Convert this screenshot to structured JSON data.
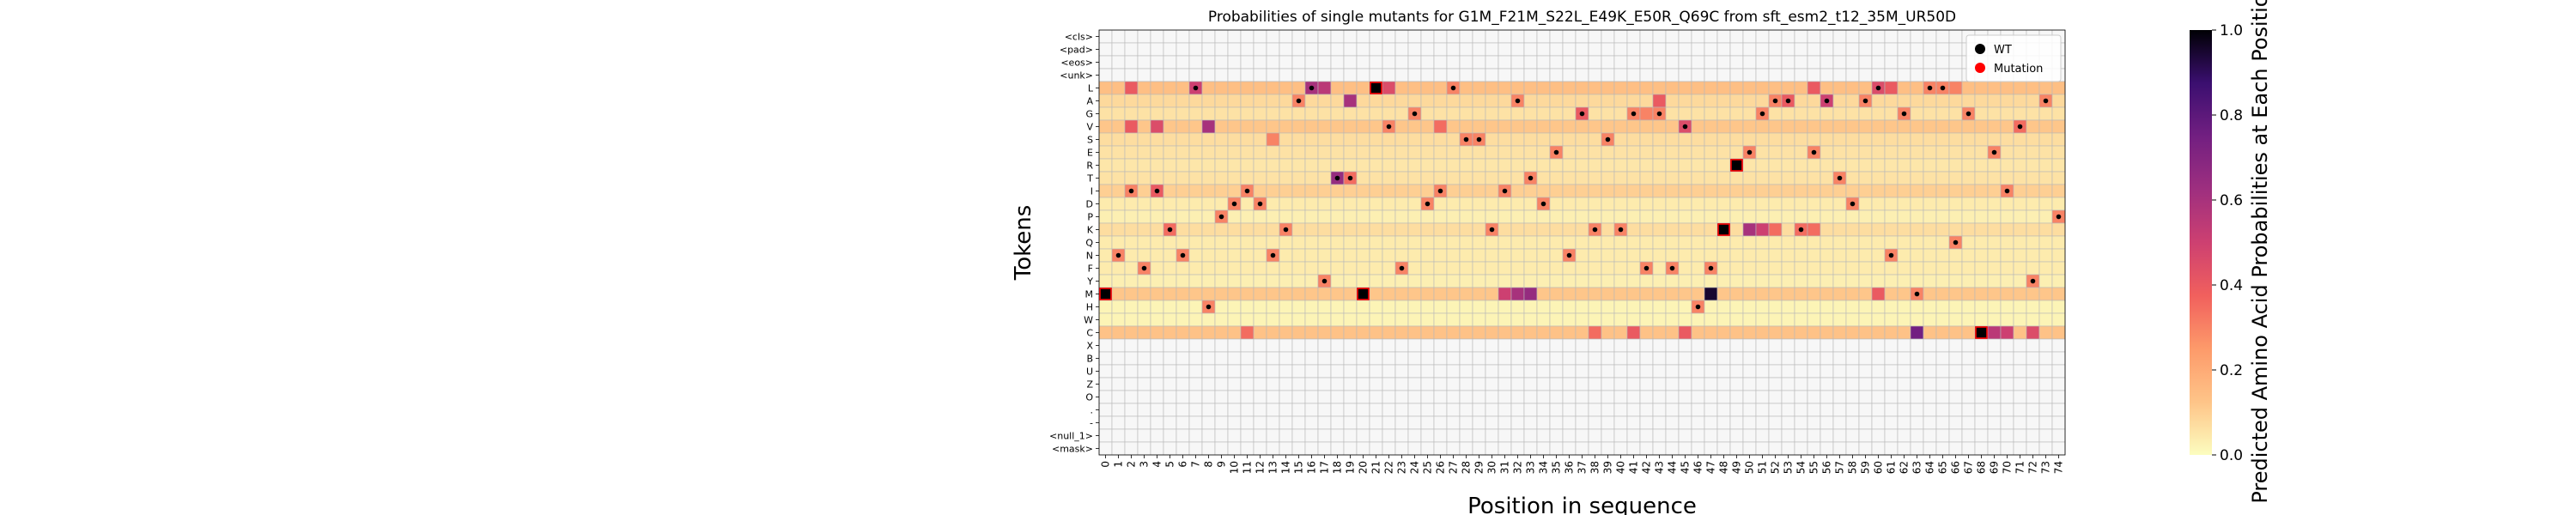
{
  "chart_data": {
    "type": "heatmap",
    "title": "Probabilities of single mutants for G1M_F21M_S22L_E49K_E50R_Q69C from sft_esm2_t12_35M_UR50D",
    "xlabel": "Position in sequence",
    "ylabel": "Tokens",
    "x_categories": [
      "0",
      "1",
      "2",
      "3",
      "4",
      "5",
      "6",
      "7",
      "8",
      "9",
      "10",
      "11",
      "12",
      "13",
      "14",
      "15",
      "16",
      "17",
      "18",
      "19",
      "20",
      "21",
      "22",
      "23",
      "24",
      "25",
      "26",
      "27",
      "28",
      "29",
      "30",
      "31",
      "32",
      "33",
      "34",
      "35",
      "36",
      "37",
      "38",
      "39",
      "40",
      "41",
      "42",
      "43",
      "44",
      "45",
      "46",
      "47",
      "48",
      "49",
      "50",
      "51",
      "52",
      "53",
      "54",
      "55",
      "56",
      "57",
      "58",
      "59",
      "60",
      "61",
      "62",
      "63",
      "64",
      "65",
      "66",
      "67",
      "68",
      "69",
      "70",
      "71",
      "72",
      "73",
      "74"
    ],
    "y_categories": [
      "<cls>",
      "<pad>",
      "<eos>",
      "<unk>",
      "L",
      "A",
      "G",
      "V",
      "S",
      "E",
      "R",
      "T",
      "I",
      "D",
      "P",
      "K",
      "Q",
      "N",
      "F",
      "Y",
      "M",
      "H",
      "W",
      "C",
      "X",
      "B",
      "U",
      "Z",
      "O",
      ".",
      "-",
      "<null_1>",
      "<mask>"
    ],
    "colorbar": {
      "label": "Predicted Amino Acid Probabilities at Each Position",
      "colormap": "magma_r",
      "range": [
        0.0,
        1.0
      ],
      "ticks": [
        "0.0",
        "0.2",
        "0.4",
        "0.6",
        "0.8",
        "1.0"
      ]
    },
    "legend": {
      "position": "top-right",
      "entries": [
        {
          "label": "WT",
          "color": "#000000"
        },
        {
          "label": "Mutation",
          "color": "#ff0000"
        }
      ]
    },
    "base_probabilities": {
      "L": 0.14,
      "A": 0.08,
      "G": 0.06,
      "V": 0.12,
      "S": 0.07,
      "E": 0.06,
      "R": 0.05,
      "T": 0.06,
      "I": 0.1,
      "D": 0.04,
      "P": 0.03,
      "K": 0.07,
      "Q": 0.04,
      "N": 0.04,
      "F": 0.04,
      "Y": 0.03,
      "M": 0.12,
      "H": 0.02,
      "W": 0.02,
      "C": 0.13
    },
    "highlighted_probabilities": [
      {
        "token": "L",
        "x": 2,
        "p": 0.4
      },
      {
        "token": "L",
        "x": 7,
        "p": 0.5
      },
      {
        "token": "L",
        "x": 16,
        "p": 0.6
      },
      {
        "token": "L",
        "x": 17,
        "p": 0.55
      },
      {
        "token": "L",
        "x": 21,
        "p": 1.0
      },
      {
        "token": "L",
        "x": 22,
        "p": 0.45
      },
      {
        "token": "L",
        "x": 60,
        "p": 0.45
      },
      {
        "token": "L",
        "x": 61,
        "p": 0.4
      },
      {
        "token": "L",
        "x": 55,
        "p": 0.4
      },
      {
        "token": "L",
        "x": 64,
        "p": 0.3
      },
      {
        "token": "L",
        "x": 66,
        "p": 0.3
      },
      {
        "token": "A",
        "x": 19,
        "p": 0.6
      },
      {
        "token": "A",
        "x": 43,
        "p": 0.4
      },
      {
        "token": "A",
        "x": 53,
        "p": 0.4
      },
      {
        "token": "A",
        "x": 56,
        "p": 0.5
      },
      {
        "token": "G",
        "x": 37,
        "p": 0.4
      },
      {
        "token": "G",
        "x": 42,
        "p": 0.3
      },
      {
        "token": "V",
        "x": 2,
        "p": 0.4
      },
      {
        "token": "V",
        "x": 4,
        "p": 0.45
      },
      {
        "token": "V",
        "x": 8,
        "p": 0.6
      },
      {
        "token": "V",
        "x": 22,
        "p": 0.3
      },
      {
        "token": "V",
        "x": 26,
        "p": 0.35
      },
      {
        "token": "V",
        "x": 45,
        "p": 0.45
      },
      {
        "token": "V",
        "x": 71,
        "p": 0.35
      },
      {
        "token": "S",
        "x": 13,
        "p": 0.3
      },
      {
        "token": "R",
        "x": 49,
        "p": 1.0
      },
      {
        "token": "T",
        "x": 18,
        "p": 0.65
      },
      {
        "token": "T",
        "x": 19,
        "p": 0.35
      },
      {
        "token": "I",
        "x": 4,
        "p": 0.4
      },
      {
        "token": "K",
        "x": 5,
        "p": 0.35
      },
      {
        "token": "K",
        "x": 14,
        "p": 0.3
      },
      {
        "token": "K",
        "x": 48,
        "p": 1.0
      },
      {
        "token": "K",
        "x": 50,
        "p": 0.6
      },
      {
        "token": "K",
        "x": 51,
        "p": 0.5
      },
      {
        "token": "K",
        "x": 52,
        "p": 0.35
      },
      {
        "token": "K",
        "x": 54,
        "p": 0.35
      },
      {
        "token": "K",
        "x": 55,
        "p": 0.35
      },
      {
        "token": "M",
        "x": 0,
        "p": 1.0
      },
      {
        "token": "M",
        "x": 20,
        "p": 1.0
      },
      {
        "token": "M",
        "x": 31,
        "p": 0.5
      },
      {
        "token": "M",
        "x": 32,
        "p": 0.6
      },
      {
        "token": "M",
        "x": 33,
        "p": 0.65
      },
      {
        "token": "M",
        "x": 47,
        "p": 0.95
      },
      {
        "token": "M",
        "x": 60,
        "p": 0.4
      },
      {
        "token": "C",
        "x": 11,
        "p": 0.35
      },
      {
        "token": "C",
        "x": 38,
        "p": 0.35
      },
      {
        "token": "C",
        "x": 41,
        "p": 0.4
      },
      {
        "token": "C",
        "x": 45,
        "p": 0.4
      },
      {
        "token": "C",
        "x": 63,
        "p": 0.75
      },
      {
        "token": "C",
        "x": 68,
        "p": 1.0
      },
      {
        "token": "C",
        "x": 69,
        "p": 0.55
      },
      {
        "token": "C",
        "x": 70,
        "p": 0.5
      },
      {
        "token": "C",
        "x": 72,
        "p": 0.45
      }
    ],
    "wild_type": [
      {
        "x": 0,
        "token": "M"
      },
      {
        "x": 1,
        "token": "N"
      },
      {
        "x": 2,
        "token": "I"
      },
      {
        "x": 3,
        "token": "F"
      },
      {
        "x": 4,
        "token": "I"
      },
      {
        "x": 5,
        "token": "K"
      },
      {
        "x": 6,
        "token": "N"
      },
      {
        "x": 7,
        "token": "L"
      },
      {
        "x": 8,
        "token": "H"
      },
      {
        "x": 9,
        "token": "P"
      },
      {
        "x": 10,
        "token": "D"
      },
      {
        "x": 11,
        "token": "I"
      },
      {
        "x": 12,
        "token": "D"
      },
      {
        "x": 13,
        "token": "N"
      },
      {
        "x": 14,
        "token": "K"
      },
      {
        "x": 15,
        "token": "A"
      },
      {
        "x": 16,
        "token": "L"
      },
      {
        "x": 17,
        "token": "Y"
      },
      {
        "x": 18,
        "token": "T"
      },
      {
        "x": 19,
        "token": "T"
      },
      {
        "x": 20,
        "token": "M"
      },
      {
        "x": 21,
        "token": "L"
      },
      {
        "x": 22,
        "token": "V"
      },
      {
        "x": 23,
        "token": "F"
      },
      {
        "x": 24,
        "token": "G"
      },
      {
        "x": 25,
        "token": "D"
      },
      {
        "x": 26,
        "token": "I"
      },
      {
        "x": 27,
        "token": "L"
      },
      {
        "x": 28,
        "token": "S"
      },
      {
        "x": 29,
        "token": "S"
      },
      {
        "x": 30,
        "token": "K"
      },
      {
        "x": 31,
        "token": "I"
      },
      {
        "x": 32,
        "token": "A"
      },
      {
        "x": 33,
        "token": "T"
      },
      {
        "x": 34,
        "token": "D"
      },
      {
        "x": 35,
        "token": "E"
      },
      {
        "x": 36,
        "token": "N"
      },
      {
        "x": 37,
        "token": "G"
      },
      {
        "x": 38,
        "token": "K"
      },
      {
        "x": 39,
        "token": "S"
      },
      {
        "x": 40,
        "token": "K"
      },
      {
        "x": 41,
        "token": "G"
      },
      {
        "x": 42,
        "token": "F"
      },
      {
        "x": 43,
        "token": "G"
      },
      {
        "x": 44,
        "token": "F"
      },
      {
        "x": 45,
        "token": "V"
      },
      {
        "x": 46,
        "token": "H"
      },
      {
        "x": 47,
        "token": "F"
      },
      {
        "x": 48,
        "token": "K"
      },
      {
        "x": 49,
        "token": "R"
      },
      {
        "x": 50,
        "token": "E"
      },
      {
        "x": 51,
        "token": "G"
      },
      {
        "x": 52,
        "token": "A"
      },
      {
        "x": 53,
        "token": "A"
      },
      {
        "x": 54,
        "token": "K"
      },
      {
        "x": 55,
        "token": "E"
      },
      {
        "x": 56,
        "token": "A"
      },
      {
        "x": 57,
        "token": "T"
      },
      {
        "x": 58,
        "token": "D"
      },
      {
        "x": 59,
        "token": "A"
      },
      {
        "x": 60,
        "token": "L"
      },
      {
        "x": 61,
        "token": "N"
      },
      {
        "x": 62,
        "token": "G"
      },
      {
        "x": 63,
        "token": "M"
      },
      {
        "x": 64,
        "token": "L"
      },
      {
        "x": 65,
        "token": "L"
      },
      {
        "x": 66,
        "token": "Q"
      },
      {
        "x": 67,
        "token": "G"
      },
      {
        "x": 68,
        "token": "C"
      },
      {
        "x": 69,
        "token": "E"
      },
      {
        "x": 70,
        "token": "I"
      },
      {
        "x": 71,
        "token": "V"
      },
      {
        "x": 72,
        "token": "Y"
      },
      {
        "x": 73,
        "token": "A"
      },
      {
        "x": 74,
        "token": "P"
      }
    ],
    "mutations": [
      {
        "x": 0,
        "token": "M"
      },
      {
        "x": 20,
        "token": "M"
      },
      {
        "x": 21,
        "token": "L"
      },
      {
        "x": 48,
        "token": "K"
      },
      {
        "x": 49,
        "token": "R"
      },
      {
        "x": 68,
        "token": "C"
      }
    ]
  }
}
